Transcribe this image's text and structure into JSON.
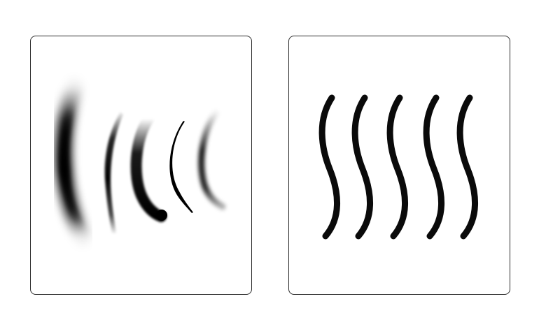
{
  "panels": [
    {
      "id": "left",
      "description_name": "brush-stroke-samples",
      "strokes": [
        {
          "name": "soft-airbrush-stroke",
          "color": "#000000"
        },
        {
          "name": "dry-tapered-stroke",
          "color": "#000000"
        },
        {
          "name": "marker-round-end-stroke",
          "color": "#000000"
        },
        {
          "name": "thin-ink-stroke",
          "color": "#000000"
        },
        {
          "name": "soft-tapered-stroke",
          "color": "#000000"
        }
      ]
    },
    {
      "id": "right",
      "description_name": "uniform-wave-strokes",
      "strokes": [
        {
          "name": "wave-stroke-1",
          "color": "#0a0a0a"
        },
        {
          "name": "wave-stroke-2",
          "color": "#0a0a0a"
        },
        {
          "name": "wave-stroke-3",
          "color": "#0a0a0a"
        },
        {
          "name": "wave-stroke-4",
          "color": "#0a0a0a"
        },
        {
          "name": "wave-stroke-5",
          "color": "#0a0a0a"
        }
      ]
    }
  ],
  "colors": {
    "panel_border": "#2b2b2b",
    "background": "#ffffff",
    "ink": "#000000"
  }
}
